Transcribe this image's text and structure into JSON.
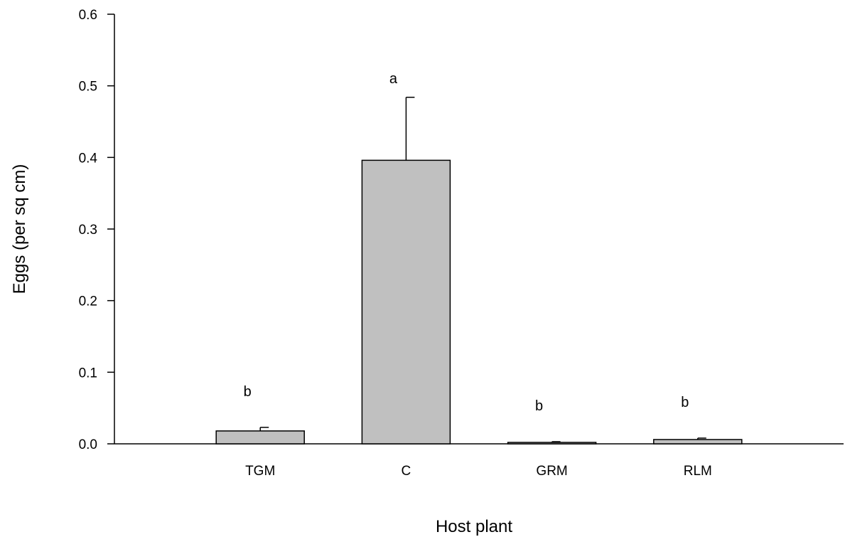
{
  "chart_data": {
    "type": "bar",
    "categories": [
      "TGM",
      "C",
      "GRM",
      "RLM"
    ],
    "values": [
      0.018,
      0.396,
      0.002,
      0.006
    ],
    "errors": [
      0.005,
      0.088,
      0.001,
      0.002
    ],
    "significance_labels": [
      "b",
      "a",
      "b",
      "b"
    ],
    "xlabel": "Host plant",
    "ylabel": "Eggs (per sq cm)",
    "ylim": [
      0,
      0.6
    ],
    "yticks": [
      "0.0",
      "0.1",
      "0.2",
      "0.3",
      "0.4",
      "0.5",
      "0.6"
    ],
    "bar_color": "#c0c0c0",
    "grid": false,
    "legend": "none"
  }
}
